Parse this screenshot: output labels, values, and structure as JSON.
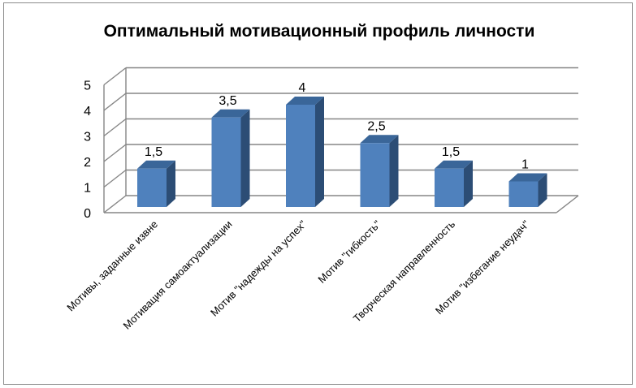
{
  "chart_data": {
    "type": "bar",
    "title": "Оптимальный мотивационный профиль личности",
    "categories": [
      "Мотивы, заданные извне",
      "Мотивация самоактуализации",
      "Мотив \"надежды на успех\"",
      "Мотив \"гибкость\"",
      "Творческая направленность",
      "Мотив \"избегание неудач\""
    ],
    "values": [
      1.5,
      3.5,
      4,
      2.5,
      1.5,
      1
    ],
    "data_labels": [
      "1,5",
      "3,5",
      "4",
      "2,5",
      "1,5",
      "1"
    ],
    "ylim": [
      0,
      5
    ],
    "y_ticks": [
      "0",
      "1",
      "2",
      "3",
      "4",
      "5"
    ],
    "grid": true,
    "style": "3d-column",
    "colors": {
      "bar_front": "#4f81bd",
      "bar_side": "#2c4d75",
      "bar_top": "#3a6699",
      "grid": "#868686"
    }
  }
}
